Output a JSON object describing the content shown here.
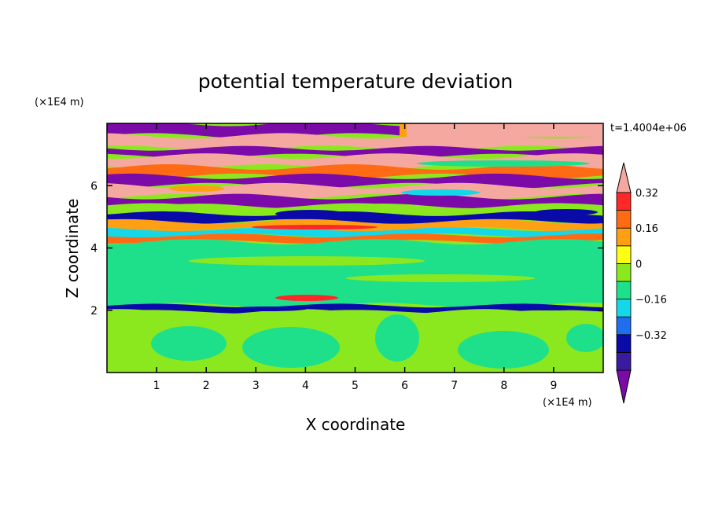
{
  "chart_data": {
    "type": "heatmap",
    "title": "potential temperature deviation",
    "xlabel": "X coordinate",
    "ylabel": "Z coordinate",
    "x_unit": "(×1E4 m)",
    "y_unit": "(×1E4 m)",
    "time_label": "t=1.4004e+06",
    "xlim": [
      0,
      10
    ],
    "ylim": [
      0,
      8
    ],
    "x_ticks": [
      1,
      2,
      3,
      4,
      5,
      6,
      7,
      8,
      9
    ],
    "y_ticks": [
      2,
      4,
      6
    ],
    "colorbar": {
      "labels": [
        "0.32",
        "0.16",
        "0",
        "−0.16",
        "−0.32"
      ],
      "levels": [
        -0.4,
        -0.32,
        -0.24,
        -0.16,
        -0.08,
        0,
        0.08,
        0.16,
        0.24,
        0.32,
        0.4
      ],
      "colors": [
        "#7b0aa8",
        "#3a1aa0",
        "#0a0aa8",
        "#1f6ef0",
        "#14d8e8",
        "#1fe08a",
        "#8ce81e",
        "#ffff14",
        "#ffa014",
        "#ff6b14",
        "#ff2828",
        "#f5a8a0"
      ],
      "extend": "both"
    },
    "bands": [
      {
        "z_bottom": 7.6,
        "z_top": 8.0,
        "value": -0.45
      },
      {
        "z_bottom": 7.2,
        "z_top": 7.6,
        "value": 0.45
      },
      {
        "z_bottom": 6.95,
        "z_top": 7.2,
        "value": -0.45
      },
      {
        "z_bottom": 6.6,
        "z_top": 6.95,
        "value": 0.45
      },
      {
        "z_bottom": 6.3,
        "z_top": 6.6,
        "value": 0.3
      },
      {
        "z_bottom": 6.0,
        "z_top": 6.3,
        "value": -0.45
      },
      {
        "z_bottom": 5.65,
        "z_top": 6.0,
        "value": 0.45
      },
      {
        "z_bottom": 5.35,
        "z_top": 5.65,
        "value": -0.45
      },
      {
        "z_bottom": 5.1,
        "z_top": 5.35,
        "value": 0.04
      },
      {
        "z_bottom": 4.85,
        "z_top": 5.1,
        "value": -0.3
      },
      {
        "z_bottom": 4.6,
        "z_top": 4.85,
        "value": 0.2
      },
      {
        "z_bottom": 4.4,
        "z_top": 4.6,
        "value": -0.12
      },
      {
        "z_bottom": 4.2,
        "z_top": 4.4,
        "value": 0.28
      },
      {
        "z_bottom": 2.15,
        "z_top": 4.2,
        "value": -0.04
      },
      {
        "z_bottom": 1.95,
        "z_top": 2.15,
        "value": -0.3
      },
      {
        "z_bottom": 0.0,
        "z_top": 1.95,
        "value": 0.04
      }
    ]
  }
}
